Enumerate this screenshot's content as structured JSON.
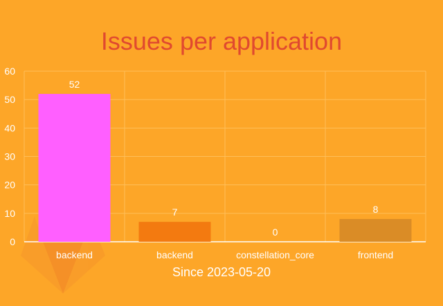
{
  "colors": {
    "background": "#fda628",
    "title": "#e0492f",
    "text": "#ffffff",
    "grid": "#ffbf5a",
    "logo": "#f0862c"
  },
  "logo_icon": "gitlab-tanuki-watermark",
  "chart_data": {
    "type": "bar",
    "title": "Issues per application",
    "xlabel": "Since 2023-05-20",
    "ylabel": "",
    "ylim": [
      0,
      60
    ],
    "yticks": [
      0,
      10,
      20,
      30,
      40,
      50,
      60
    ],
    "grid": true,
    "categories": [
      "backend",
      "backend",
      "constellation_core",
      "frontend"
    ],
    "values": [
      52,
      7,
      0,
      8
    ],
    "bar_colors": [
      "#ff5fff",
      "#f37a10",
      "#fda628",
      "#da8c26"
    ],
    "data_labels": [
      "52",
      "7",
      "0",
      "8"
    ]
  }
}
